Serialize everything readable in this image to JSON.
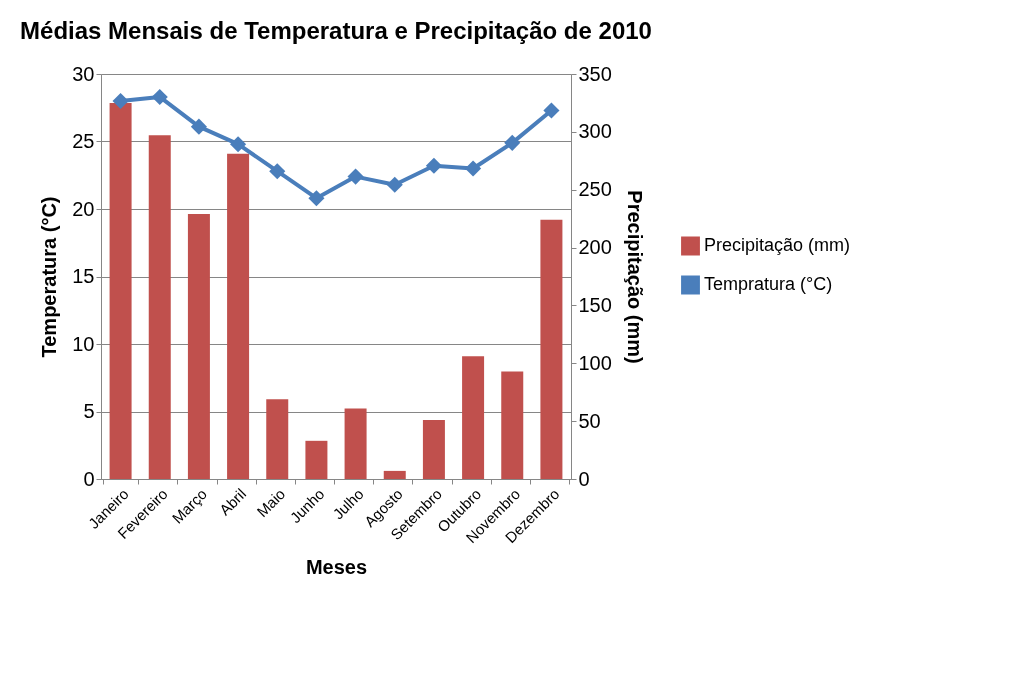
{
  "chart_data": {
    "type": "bar",
    "title": "Médias Mensais de Temperatura e Precipitação de 2010",
    "xlabel": "Meses",
    "ylabel": "Temperatura (°C)",
    "y2label": "Precipitação (mm)",
    "categories": [
      "Janeiro",
      "Fevereiro",
      "Março",
      "Abril",
      "Maio",
      "Junho",
      "Julho",
      "Agosto",
      "Setembro",
      "Outubro",
      "Novembro",
      "Dezembro"
    ],
    "series": [
      {
        "name": "Precipitação (mm)",
        "axis": "y2",
        "color": "#c0504d",
        "values": [
          325,
          297,
          229,
          281,
          69,
          33,
          61,
          7,
          51,
          106,
          93,
          224
        ]
      },
      {
        "name": "Tempratura (°C)",
        "type": "line",
        "axis": "y",
        "color": "#4a7ebb",
        "marker": "diamond",
        "values": [
          28.0,
          28.3,
          26.1,
          24.8,
          22.8,
          20.8,
          22.4,
          21.8,
          23.2,
          23.0,
          24.9,
          27.3
        ]
      }
    ],
    "ylim": [
      0,
      30
    ],
    "yticks": [
      0,
      5,
      10,
      15,
      20,
      25,
      30
    ],
    "y2lim": [
      0,
      350
    ],
    "y2ticks": [
      0,
      50,
      100,
      150,
      200,
      250,
      300,
      350
    ],
    "grid": "y",
    "legend": "right"
  }
}
